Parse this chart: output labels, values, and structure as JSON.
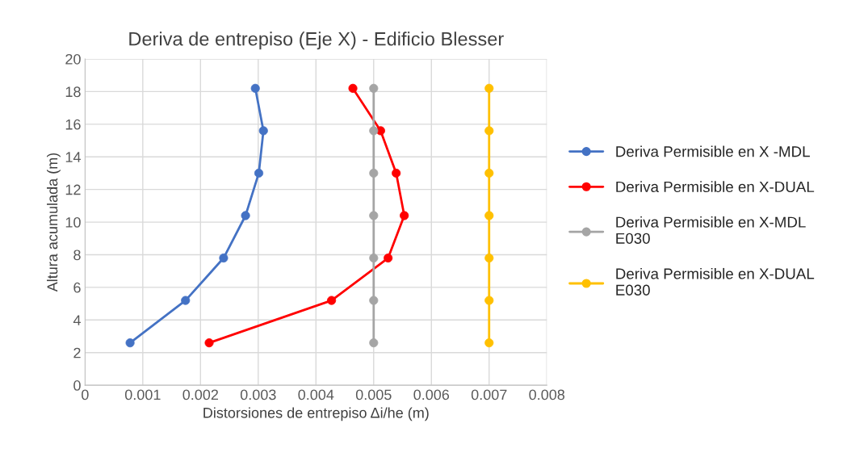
{
  "chart_data": {
    "type": "line",
    "title": "Deriva de entrepiso (Eje X) - Edificio Blesser",
    "xlabel": "Distorsiones de entrepiso Δi/he (m)",
    "ylabel": "Altura acumulada (m)",
    "xlim": [
      0,
      0.008
    ],
    "xticks": [
      0,
      0.001,
      0.002,
      0.003,
      0.004,
      0.005,
      0.006,
      0.007,
      0.008
    ],
    "ylim": [
      0,
      20
    ],
    "yticks": [
      0,
      2,
      4,
      6,
      8,
      10,
      12,
      14,
      16,
      18,
      20
    ],
    "grid": true,
    "legend": "right",
    "marker": "circle",
    "line_style": "solid",
    "series": [
      {
        "name": "Deriva Permisible en X -MDL",
        "color": "#4472c4",
        "x": [
          0.00078,
          0.00174,
          0.0024,
          0.00278,
          0.00301,
          0.00309,
          0.00295
        ],
        "values": [
          2.6,
          5.2,
          7.8,
          10.4,
          13.0,
          15.6,
          18.2
        ]
      },
      {
        "name": "Deriva Permisible en X-DUAL",
        "color": "#ff0000",
        "x": [
          0.00215,
          0.00427,
          0.00525,
          0.00553,
          0.00539,
          0.00512,
          0.00464
        ],
        "values": [
          2.6,
          5.2,
          7.8,
          10.4,
          13.0,
          15.6,
          18.2
        ]
      },
      {
        "name": "Deriva Permisible en X-MDL E030",
        "color": "#a5a5a5",
        "x": [
          0.005,
          0.005,
          0.005,
          0.005,
          0.005,
          0.005,
          0.005
        ],
        "values": [
          2.6,
          5.2,
          7.8,
          10.4,
          13.0,
          15.6,
          18.2
        ]
      },
      {
        "name": "Deriva Permisible en X-DUAL E030",
        "color": "#ffc000",
        "x": [
          0.007,
          0.007,
          0.007,
          0.007,
          0.007,
          0.007,
          0.007
        ],
        "values": [
          2.6,
          5.2,
          7.8,
          10.4,
          13.0,
          15.6,
          18.2
        ]
      }
    ]
  }
}
